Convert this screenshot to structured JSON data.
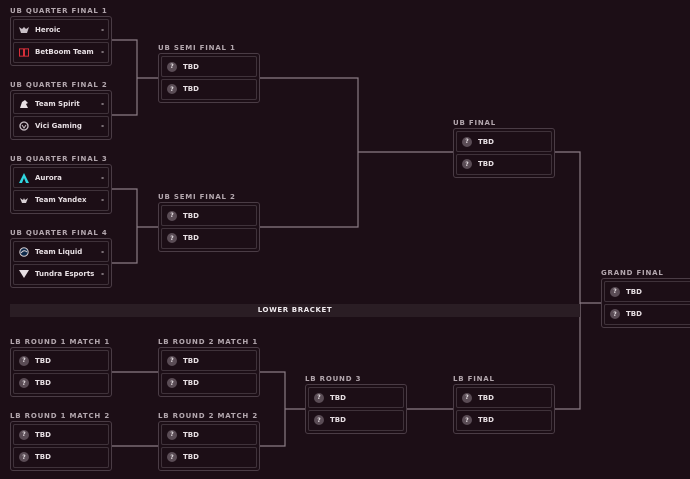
{
  "lower_bracket_label": "LOWER BRACKET",
  "colors": {
    "background": "#1c0e16",
    "border": "#4a3c45",
    "connector": "#8a7c85"
  },
  "matches": [
    {
      "id": "ubqf1",
      "title": "UB QUARTER FINAL 1",
      "teams": [
        {
          "name": "Heroic",
          "score": "-",
          "icon": "heroic-logo-icon"
        },
        {
          "name": "BetBoom Team",
          "score": "-",
          "icon": "betboom-logo-icon"
        }
      ]
    },
    {
      "id": "ubqf2",
      "title": "UB QUARTER FINAL 2",
      "teams": [
        {
          "name": "Team Spirit",
          "score": "-",
          "icon": "team-spirit-logo-icon"
        },
        {
          "name": "Vici Gaming",
          "score": "-",
          "icon": "vici-gaming-logo-icon"
        }
      ]
    },
    {
      "id": "ubqf3",
      "title": "UB QUARTER FINAL 3",
      "teams": [
        {
          "name": "Aurora",
          "score": "-",
          "icon": "aurora-logo-icon"
        },
        {
          "name": "Team Yandex",
          "score": "-",
          "icon": "team-yandex-logo-icon"
        }
      ]
    },
    {
      "id": "ubqf4",
      "title": "UB QUARTER FINAL 4",
      "teams": [
        {
          "name": "Team Liquid",
          "score": "-",
          "icon": "team-liquid-logo-icon"
        },
        {
          "name": "Tundra Esports",
          "score": "-",
          "icon": "tundra-logo-icon"
        }
      ]
    },
    {
      "id": "ubsf1",
      "title": "UB SEMI FINAL 1",
      "teams": [
        {
          "name": "TBD",
          "icon": "question-icon"
        },
        {
          "name": "TBD",
          "icon": "question-icon"
        }
      ]
    },
    {
      "id": "ubsf2",
      "title": "UB SEMI FINAL 2",
      "teams": [
        {
          "name": "TBD",
          "icon": "question-icon"
        },
        {
          "name": "TBD",
          "icon": "question-icon"
        }
      ]
    },
    {
      "id": "ubf",
      "title": "UB FINAL",
      "teams": [
        {
          "name": "TBD",
          "icon": "question-icon"
        },
        {
          "name": "TBD",
          "icon": "question-icon"
        }
      ]
    },
    {
      "id": "gf",
      "title": "GRAND FINAL",
      "teams": [
        {
          "name": "TBD",
          "icon": "question-icon"
        },
        {
          "name": "TBD",
          "icon": "question-icon"
        }
      ]
    },
    {
      "id": "lbr1m1",
      "title": "LB ROUND 1 MATCH 1",
      "teams": [
        {
          "name": "TBD",
          "icon": "question-icon"
        },
        {
          "name": "TBD",
          "icon": "question-icon"
        }
      ]
    },
    {
      "id": "lbr1m2",
      "title": "LB ROUND 1 MATCH 2",
      "teams": [
        {
          "name": "TBD",
          "icon": "question-icon"
        },
        {
          "name": "TBD",
          "icon": "question-icon"
        }
      ]
    },
    {
      "id": "lbr2m1",
      "title": "LB ROUND 2 MATCH 1",
      "teams": [
        {
          "name": "TBD",
          "icon": "question-icon"
        },
        {
          "name": "TBD",
          "icon": "question-icon"
        }
      ]
    },
    {
      "id": "lbr2m2",
      "title": "LB ROUND 2 MATCH 2",
      "teams": [
        {
          "name": "TBD",
          "icon": "question-icon"
        },
        {
          "name": "TBD",
          "icon": "question-icon"
        }
      ]
    },
    {
      "id": "lbr3",
      "title": "LB ROUND 3",
      "teams": [
        {
          "name": "TBD",
          "icon": "question-icon"
        },
        {
          "name": "TBD",
          "icon": "question-icon"
        }
      ]
    },
    {
      "id": "lbf",
      "title": "LB FINAL",
      "teams": [
        {
          "name": "TBD",
          "icon": "question-icon"
        },
        {
          "name": "TBD",
          "icon": "question-icon"
        }
      ]
    }
  ]
}
